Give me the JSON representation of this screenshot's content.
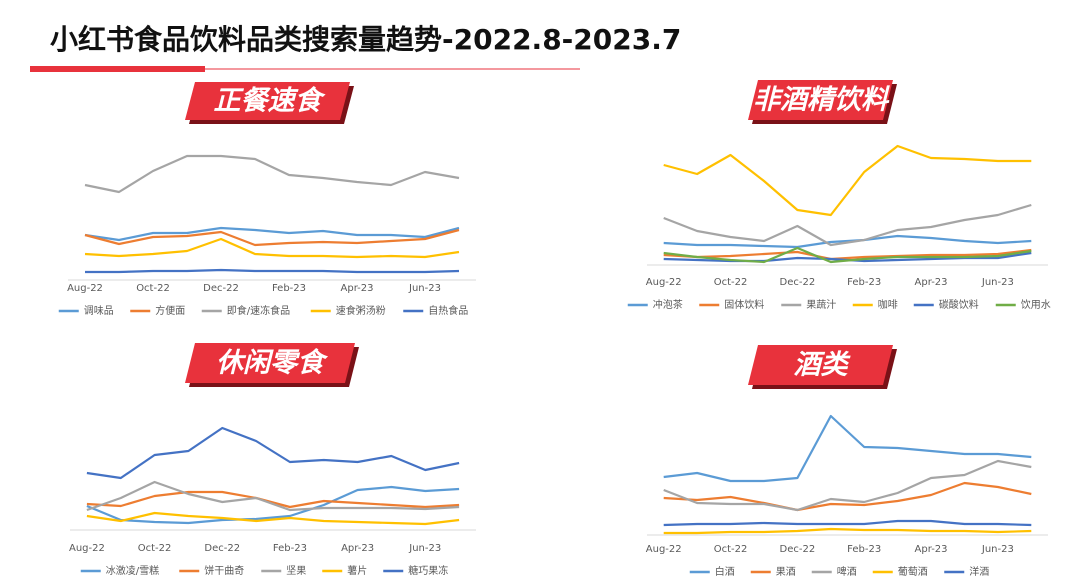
{
  "title": "小红书食品饮料品类搜索量趋势-2022.8-2023.7",
  "chart_data": [
    {
      "type": "line",
      "title": "正餐速食",
      "categories": [
        "Aug-22",
        null,
        "Oct-22",
        null,
        "Dec-22",
        null,
        "Feb-23",
        null,
        "Apr-23",
        null,
        "Jun-23",
        null
      ],
      "ylim": [
        0,
        140
      ],
      "series": [
        {
          "name": "调味品",
          "color": "#5b9bd5",
          "values": [
            45,
            40,
            47,
            47,
            52,
            50,
            47,
            49,
            45,
            45,
            43,
            52
          ]
        },
        {
          "name": "方便面",
          "color": "#ed7d31",
          "values": [
            45,
            36,
            43,
            44,
            48,
            35,
            37,
            38,
            37,
            39,
            41,
            50
          ]
        },
        {
          "name": "即食/速冻食品",
          "color": "#a5a5a5",
          "values": [
            95,
            88,
            109,
            124,
            124,
            121,
            105,
            102,
            98,
            95,
            108,
            102
          ]
        },
        {
          "name": "速食粥汤粉",
          "color": "#ffc000",
          "values": [
            26,
            24,
            26,
            29,
            41,
            26,
            24,
            24,
            23,
            24,
            23,
            28
          ]
        },
        {
          "name": "自热食品",
          "color": "#4472c4",
          "values": [
            8,
            8,
            9,
            9,
            10,
            9,
            9,
            9,
            8,
            8,
            8,
            9
          ]
        }
      ]
    },
    {
      "type": "line",
      "title": "非酒精饮料",
      "categories": [
        "Aug-22",
        null,
        "Oct-22",
        null,
        "Dec-22",
        null,
        "Feb-23",
        null,
        "Apr-23",
        null,
        "Jun-23",
        null
      ],
      "ylim": [
        0,
        130
      ],
      "series": [
        {
          "name": "冲泡茶",
          "color": "#5b9bd5",
          "values": [
            22,
            20,
            20,
            19,
            18,
            23,
            25,
            29,
            27,
            24,
            22,
            24
          ]
        },
        {
          "name": "固体饮料",
          "color": "#ed7d31",
          "values": [
            10,
            8,
            9,
            11,
            13,
            6,
            8,
            9,
            10,
            10,
            11,
            15
          ]
        },
        {
          "name": "果蔬汁",
          "color": "#a5a5a5",
          "values": [
            47,
            34,
            28,
            24,
            39,
            20,
            25,
            35,
            38,
            45,
            50,
            60
          ]
        },
        {
          "name": "咖啡",
          "color": "#ffc000",
          "values": [
            100,
            91,
            110,
            84,
            55,
            50,
            93,
            119,
            107,
            106,
            104,
            104
          ]
        },
        {
          "name": "碳酸饮料",
          "color": "#4472c4",
          "values": [
            6,
            5,
            4,
            4,
            7,
            6,
            4,
            5,
            6,
            7,
            7,
            12
          ]
        },
        {
          "name": "饮用水",
          "color": "#70ad47",
          "values": [
            12,
            8,
            5,
            3,
            17,
            3,
            6,
            8,
            8,
            8,
            9,
            14
          ]
        }
      ]
    },
    {
      "type": "line",
      "title": "休闲零食",
      "categories": [
        "Aug-22",
        null,
        "Oct-22",
        null,
        "Dec-22",
        null,
        "Feb-23",
        null,
        "Apr-23",
        null,
        "Jun-23",
        null
      ],
      "ylim": [
        0,
        120
      ],
      "series": [
        {
          "name": "冰激凌/雪糕",
          "color": "#5b9bd5",
          "values": [
            24,
            10,
            8,
            7,
            10,
            11,
            14,
            25,
            40,
            43,
            39,
            41
          ]
        },
        {
          "name": "饼干曲奇",
          "color": "#ed7d31",
          "values": [
            26,
            24,
            34,
            38,
            38,
            32,
            23,
            29,
            27,
            25,
            23,
            25
          ]
        },
        {
          "name": "坚果",
          "color": "#a5a5a5",
          "values": [
            20,
            32,
            48,
            36,
            28,
            32,
            20,
            22,
            22,
            22,
            21,
            23
          ]
        },
        {
          "name": "薯片",
          "color": "#ffc000",
          "values": [
            14,
            9,
            17,
            14,
            12,
            9,
            12,
            9,
            8,
            7,
            6,
            10
          ]
        },
        {
          "name": "糖巧果冻",
          "color": "#4472c4",
          "values": [
            57,
            52,
            75,
            79,
            102,
            89,
            68,
            70,
            68,
            74,
            60,
            67
          ]
        }
      ]
    },
    {
      "type": "line",
      "title": "酒类",
      "categories": [
        "Aug-22",
        null,
        "Oct-22",
        null,
        "Dec-22",
        null,
        "Feb-23",
        null,
        "Apr-23",
        null,
        "Jun-23",
        null
      ],
      "ylim": [
        0,
        130
      ],
      "series": [
        {
          "name": "白酒",
          "color": "#5b9bd5",
          "values": [
            58,
            62,
            54,
            54,
            57,
            119,
            88,
            87,
            84,
            81,
            81,
            78
          ]
        },
        {
          "name": "果酒",
          "color": "#ed7d31",
          "values": [
            37,
            35,
            38,
            32,
            25,
            31,
            30,
            34,
            40,
            52,
            48,
            41
          ]
        },
        {
          "name": "啤酒",
          "color": "#a5a5a5",
          "values": [
            45,
            32,
            31,
            31,
            25,
            36,
            33,
            42,
            57,
            60,
            74,
            68
          ]
        },
        {
          "name": "葡萄酒",
          "color": "#ffc000",
          "values": [
            2,
            2,
            3,
            3,
            4,
            6,
            5,
            5,
            4,
            4,
            3,
            4
          ]
        },
        {
          "name": "洋酒",
          "color": "#4472c4",
          "values": [
            10,
            11,
            11,
            12,
            11,
            11,
            11,
            14,
            14,
            11,
            11,
            10
          ]
        }
      ]
    }
  ]
}
